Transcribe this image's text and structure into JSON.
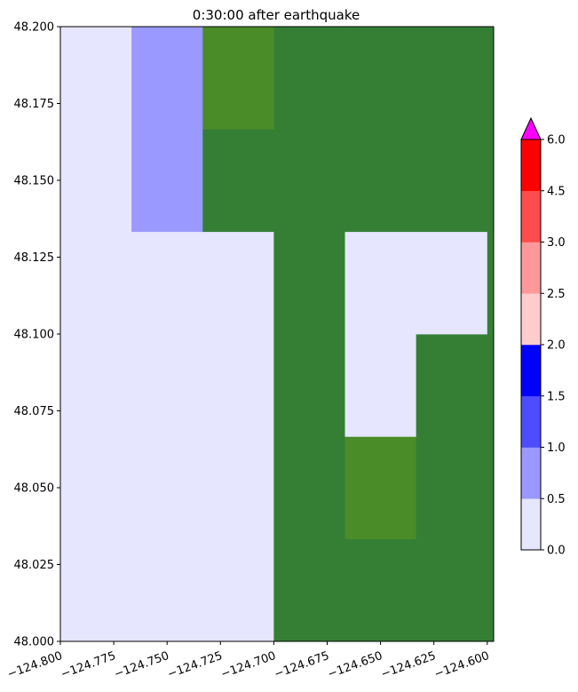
{
  "chart_data": {
    "type": "heatmap",
    "title": "0:30:00 after earthquake",
    "xlabel": "",
    "ylabel": "",
    "xlim": [
      -124.8,
      -124.597
    ],
    "ylim": [
      48.0,
      48.2
    ],
    "x_ticks": [
      -124.8,
      -124.775,
      -124.75,
      -124.725,
      -124.7,
      -124.675,
      -124.65,
      -124.625,
      -124.6
    ],
    "x_tick_labels": [
      "−124.800",
      "−124.775",
      "−124.750",
      "−124.725",
      "−124.700",
      "−124.675",
      "−124.650",
      "−124.625",
      "−124.600"
    ],
    "y_ticks": [
      48.0,
      48.025,
      48.05,
      48.075,
      48.1,
      48.125,
      48.15,
      48.175,
      48.2
    ],
    "y_tick_labels": [
      "48.000",
      "48.025",
      "48.050",
      "48.075",
      "48.100",
      "48.125",
      "48.150",
      "48.175",
      "48.200"
    ],
    "x_edges": [
      -124.8,
      -124.76667,
      -124.73333,
      -124.7,
      -124.66667,
      -124.63333,
      -124.6
    ],
    "y_edges": [
      48.0,
      48.03333,
      48.06667,
      48.1,
      48.13333,
      48.16667,
      48.2
    ],
    "cells": [
      {
        "x0": -124.8,
        "x1": -124.76667,
        "y0": 48.0,
        "y1": 48.2,
        "fill": "water0"
      },
      {
        "x0": -124.76667,
        "x1": -124.73333,
        "y0": 48.0,
        "y1": 48.13333,
        "fill": "water0"
      },
      {
        "x0": -124.76667,
        "x1": -124.73333,
        "y0": 48.13333,
        "y1": 48.2,
        "fill": "water1"
      },
      {
        "x0": -124.73333,
        "x1": -124.7,
        "y0": 48.0,
        "y1": 48.13333,
        "fill": "water0"
      },
      {
        "x0": -124.73333,
        "x1": -124.7,
        "y0": 48.13333,
        "y1": 48.16667,
        "fill": "land_dark"
      },
      {
        "x0": -124.73333,
        "x1": -124.7,
        "y0": 48.16667,
        "y1": 48.2,
        "fill": "land_light"
      },
      {
        "x0": -124.7,
        "x1": -124.66667,
        "y0": 48.0,
        "y1": 48.2,
        "fill": "land_dark"
      },
      {
        "x0": -124.66667,
        "x1": -124.63333,
        "y0": 48.0,
        "y1": 48.03333,
        "fill": "land_dark"
      },
      {
        "x0": -124.66667,
        "x1": -124.63333,
        "y0": 48.03333,
        "y1": 48.06667,
        "fill": "land_light"
      },
      {
        "x0": -124.66667,
        "x1": -124.63333,
        "y0": 48.06667,
        "y1": 48.13333,
        "fill": "water0"
      },
      {
        "x0": -124.66667,
        "x1": -124.63333,
        "y0": 48.13333,
        "y1": 48.2,
        "fill": "land_dark"
      },
      {
        "x0": -124.63333,
        "x1": -124.6,
        "y0": 48.0,
        "y1": 48.1,
        "fill": "land_dark"
      },
      {
        "x0": -124.63333,
        "x1": -124.6,
        "y0": 48.1,
        "y1": 48.13333,
        "fill": "water0"
      },
      {
        "x0": -124.63333,
        "x1": -124.6,
        "y0": 48.13333,
        "y1": 48.2,
        "fill": "land_dark"
      },
      {
        "x0": -124.6,
        "x1": -124.597,
        "y0": 48.0,
        "y1": 48.2,
        "fill": "land_dark"
      }
    ],
    "fill_colors": {
      "water0": "#e6e6ff",
      "water1": "#9999ff",
      "land_dark": "#357f35",
      "land_light": "#4a8c28"
    },
    "colorbar": {
      "levels": [
        0.0,
        0.5,
        1.0,
        1.5,
        2.0,
        2.5,
        3.0,
        4.5,
        6.0
      ],
      "level_labels": [
        "0.0",
        "0.5",
        "1.0",
        "1.5",
        "2.0",
        "2.5",
        "3.0",
        "4.5",
        "6.0"
      ],
      "colors": [
        "#e6e6ff",
        "#9999ff",
        "#4d4dff",
        "#0000ff",
        "#ffcccc",
        "#ff9999",
        "#ff4d4d",
        "#ff0000"
      ],
      "extend_color": "#ff00ff",
      "extend": "max",
      "placement": "right"
    },
    "grid": false
  }
}
